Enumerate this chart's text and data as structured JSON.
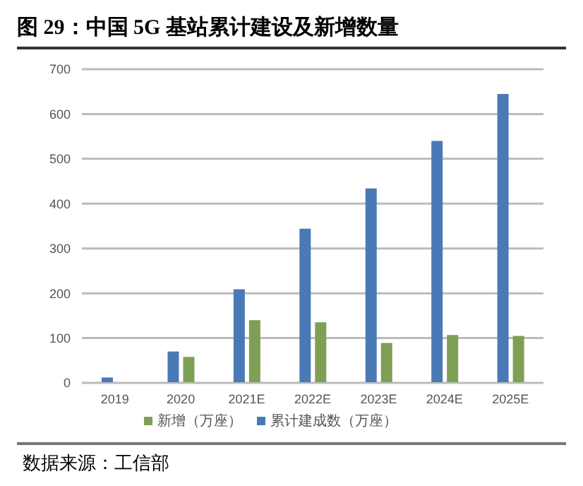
{
  "chart_data": {
    "type": "bar",
    "title": "图 29：中国 5G 基站累计建设及新增数量",
    "categories": [
      "2019",
      "2020",
      "2021E",
      "2022E",
      "2023E",
      "2024E",
      "2025E"
    ],
    "series": [
      {
        "name": "累计建成数（万座）",
        "color": "#4a7ab5",
        "values": [
          12,
          70,
          209,
          344,
          434,
          540,
          645
        ]
      },
      {
        "name": "新增（万座）",
        "color": "#7f9f55",
        "values": [
          null,
          58,
          140,
          135,
          89,
          107,
          105
        ]
      }
    ],
    "ylim": [
      0,
      700
    ],
    "yticks": [
      0,
      100,
      200,
      300,
      400,
      500,
      600,
      700
    ],
    "grid": "y",
    "legend": "bottom",
    "annotations": [
      "数据来源：工信部"
    ]
  }
}
